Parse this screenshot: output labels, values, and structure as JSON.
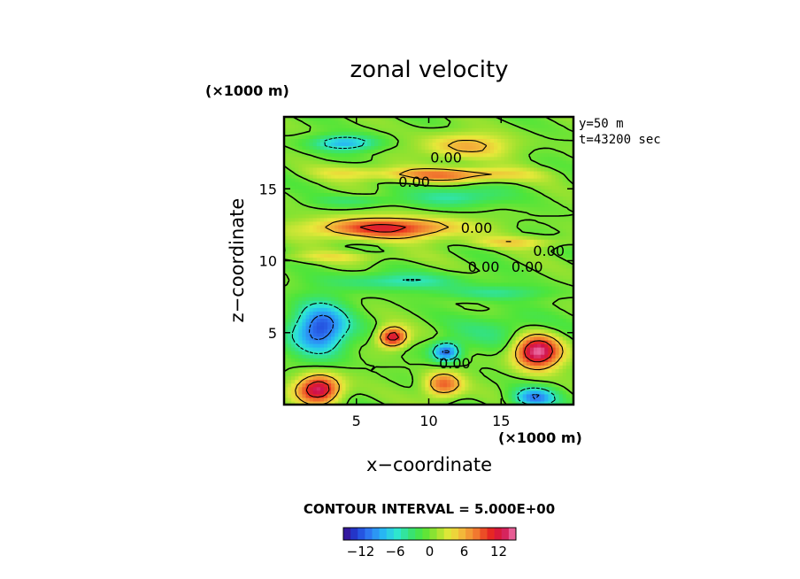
{
  "chart_data": {
    "type": "heatmap",
    "title": "zonal velocity",
    "xlabel": "x−coordinate",
    "ylabel": "z−coordinate",
    "x_unit": "(×1000 m)",
    "y_unit": "(×1000 m)",
    "xlim": [
      0,
      20
    ],
    "ylim": [
      0,
      20
    ],
    "x_ticks": [
      5,
      10,
      15
    ],
    "y_ticks": [
      5,
      10,
      15
    ],
    "info": [
      "y=50  m",
      "t=43200 sec"
    ],
    "contour_interval_text": "CONTOUR INTERVAL = 5.000E+00",
    "colorbar": {
      "ticks": [
        -12,
        -6,
        0,
        6,
        12
      ],
      "range": [
        -15,
        15
      ],
      "colors": [
        "#3a0a8a",
        "#1f3fd6",
        "#2f7cf4",
        "#27b7f3",
        "#2ee6d4",
        "#35e27a",
        "#4ee53a",
        "#9be22f",
        "#e7e83a",
        "#f3b53a",
        "#f17a2f",
        "#e82a1f",
        "#d0104a",
        "#f07ab0"
      ]
    },
    "contour_labels": [
      {
        "text": "0.00",
        "x": 11.2,
        "z": 17.2
      },
      {
        "text": "0.00",
        "x": 9.0,
        "z": 15.5
      },
      {
        "text": "0.00",
        "x": 13.3,
        "z": 12.3
      },
      {
        "text": "0.00",
        "x": 13.8,
        "z": 9.6
      },
      {
        "text": "0.00",
        "x": 16.8,
        "z": 9.6
      },
      {
        "text": "0.00",
        "x": 18.3,
        "z": 10.7
      },
      {
        "text": "0.00",
        "x": 11.8,
        "z": 2.9
      }
    ],
    "features": [
      {
        "x": 4.2,
        "z": 18.2,
        "sx": 2.2,
        "sy": 0.55,
        "v": -8
      },
      {
        "x": 12.6,
        "z": 18.0,
        "sx": 3.0,
        "sy": 0.9,
        "v": 6
      },
      {
        "x": 4.5,
        "z": 16.2,
        "sx": 2.5,
        "sy": 0.5,
        "v": 3
      },
      {
        "x": 11.5,
        "z": 16.0,
        "sx": 5.0,
        "sy": 0.5,
        "v": 8
      },
      {
        "x": 12.0,
        "z": 14.5,
        "sx": 3.0,
        "sy": 0.7,
        "v": -5
      },
      {
        "x": 5.0,
        "z": 14.2,
        "sx": 2.5,
        "sy": 0.4,
        "v": -3
      },
      {
        "x": 7.0,
        "z": 12.3,
        "sx": 5.0,
        "sy": 0.75,
        "v": 11
      },
      {
        "x": 16.0,
        "z": 11.3,
        "sx": 3.5,
        "sy": 0.4,
        "v": 4
      },
      {
        "x": 3.5,
        "z": 10.3,
        "sx": 4.5,
        "sy": 0.4,
        "v": 3
      },
      {
        "x": 8.0,
        "z": 8.6,
        "sx": 4.5,
        "sy": 0.6,
        "v": -5
      },
      {
        "x": 14.5,
        "z": 7.8,
        "sx": 3.5,
        "sy": 0.5,
        "v": -4
      },
      {
        "x": 2.5,
        "z": 5.3,
        "sx": 1.9,
        "sy": 1.7,
        "v": -13
      },
      {
        "x": 7.5,
        "z": 4.7,
        "sx": 1.0,
        "sy": 0.7,
        "v": 13
      },
      {
        "x": 11.2,
        "z": 3.7,
        "sx": 1.0,
        "sy": 0.7,
        "v": -11
      },
      {
        "x": 17.5,
        "z": 3.7,
        "sx": 1.6,
        "sy": 1.2,
        "v": 15
      },
      {
        "x": 2.4,
        "z": 1.1,
        "sx": 1.5,
        "sy": 1.0,
        "v": 14
      },
      {
        "x": 11.0,
        "z": 1.4,
        "sx": 1.3,
        "sy": 0.9,
        "v": 9
      },
      {
        "x": 17.3,
        "z": 0.5,
        "sx": 1.5,
        "sy": 0.7,
        "v": -10
      },
      {
        "x": 15.0,
        "z": 5.2,
        "sx": 3.5,
        "sy": 1.2,
        "v": -3
      }
    ]
  }
}
